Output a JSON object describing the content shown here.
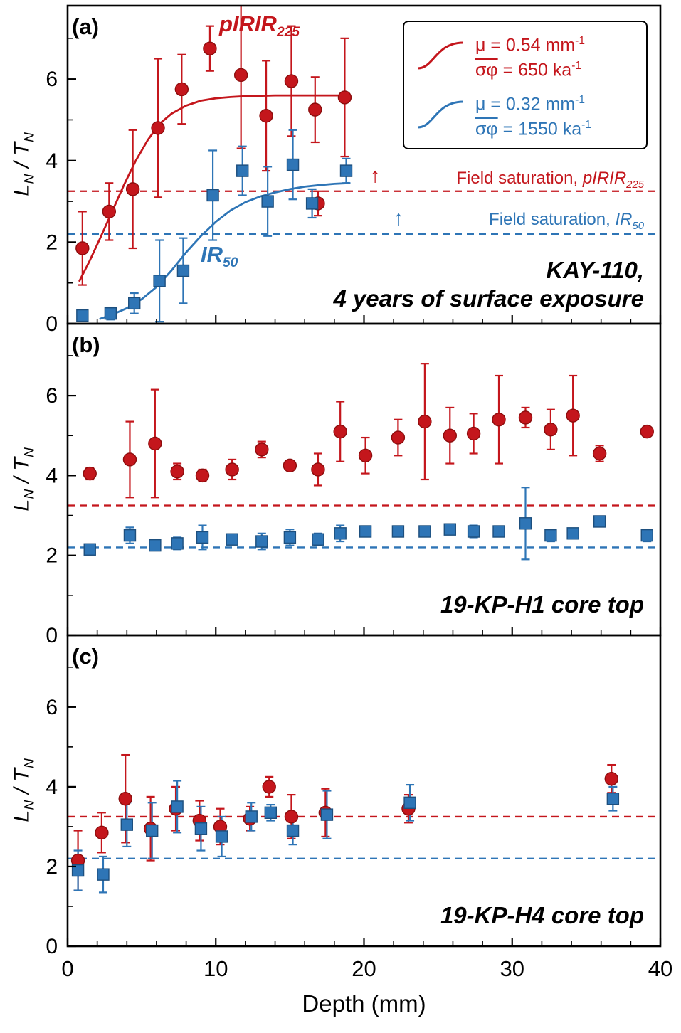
{
  "colors": {
    "red": "#c4161c",
    "blue": "#2e75b6",
    "red_edge": "#8c0d0d",
    "blue_edge": "#1d4f7e"
  },
  "figure": {
    "x_minor_step": 2,
    "y_minor_step": 1
  },
  "ui": {
    "panel_tags": [
      "(a)",
      "(b)",
      "(c)"
    ],
    "series_labels": {
      "pirir": {
        "base": "pIRIR",
        "sub": "225"
      },
      "ir": {
        "base": "IR",
        "sub": "50"
      }
    },
    "saturation_red": {
      "prefix": "Field saturation, ",
      "name": "pIRIR",
      "sub": "225",
      "arrow": "↑"
    },
    "saturation_blue": {
      "prefix": "Field saturation, ",
      "name": "IR",
      "sub": "50",
      "arrow": "↑"
    },
    "captions": {
      "a1": "KAY-110,",
      "a2": "4 years of surface exposure",
      "b": "19-KP-H1 core top",
      "c": "19-KP-H4 core top"
    },
    "legend": {
      "rows": [
        {
          "mu": "μ = 0.54 mm",
          "mu_exp": "-1",
          "sig": "σφ",
          "sig_rest": " = 650 ka",
          "sig_exp": "-1"
        },
        {
          "mu": "μ = 0.32 mm",
          "mu_exp": "-1",
          "sig": "σφ",
          "sig_rest": " = 1550 ka",
          "sig_exp": "-1"
        }
      ]
    },
    "axis": {
      "x_label": "Depth (mm)",
      "y_l": "L",
      "y_l_sub": "N",
      "y_slash": " / ",
      "y_t": "T",
      "y_t_sub": "N"
    }
  },
  "chart_data": {
    "type": "scatter",
    "xlabel": "Depth (mm)",
    "ylabel": "LN / TN",
    "xlim": [
      0,
      40
    ],
    "ylim": [
      0,
      7.8
    ],
    "xticks": [
      0,
      10,
      20,
      30,
      40
    ],
    "yticks": [
      0,
      2,
      4,
      6
    ],
    "panels": [
      {
        "id": "a",
        "title": "KAY-110, 4 years of surface exposure",
        "hlines": [
          {
            "y": 3.25,
            "color": "red",
            "style": "dashed",
            "label": "Field saturation, pIRIR225"
          },
          {
            "y": 2.2,
            "color": "blue",
            "style": "dashed",
            "label": "Field saturation, IR50"
          }
        ],
        "curves": [
          {
            "name": "pIRIR225 fit",
            "color": "red",
            "mu": 0.54,
            "sigma_phi": 650,
            "points": [
              [
                0.8,
                1.05
              ],
              [
                1.5,
                1.55
              ],
              [
                2.2,
                2.1
              ],
              [
                3,
                2.75
              ],
              [
                3.8,
                3.4
              ],
              [
                4.6,
                4.0
              ],
              [
                5.4,
                4.5
              ],
              [
                6.2,
                4.9
              ],
              [
                7,
                5.15
              ],
              [
                8,
                5.35
              ],
              [
                9,
                5.47
              ],
              [
                10,
                5.53
              ],
              [
                11,
                5.56
              ],
              [
                12,
                5.58
              ],
              [
                14,
                5.6
              ],
              [
                16,
                5.6
              ],
              [
                18.7,
                5.6
              ]
            ]
          },
          {
            "name": "IR50 fit",
            "color": "blue",
            "mu": 0.32,
            "sigma_phi": 1550,
            "points": [
              [
                2.2,
                0.12
              ],
              [
                3,
                0.22
              ],
              [
                4,
                0.38
              ],
              [
                5,
                0.6
              ],
              [
                6,
                0.9
              ],
              [
                7,
                1.3
              ],
              [
                8,
                1.75
              ],
              [
                9,
                2.15
              ],
              [
                10,
                2.5
              ],
              [
                11,
                2.78
              ],
              [
                12,
                2.98
              ],
              [
                13,
                3.12
              ],
              [
                14,
                3.22
              ],
              [
                15,
                3.3
              ],
              [
                16,
                3.36
              ],
              [
                17,
                3.4
              ],
              [
                18,
                3.43
              ],
              [
                19,
                3.45
              ]
            ]
          }
        ],
        "series": [
          {
            "name": "pIRIR225",
            "marker": "circle",
            "color": "red",
            "edge": "red_edge",
            "points": [
              [
                1.0,
                1.85,
                0.9
              ],
              [
                2.8,
                2.75,
                0.7
              ],
              [
                4.4,
                3.3,
                1.45
              ],
              [
                6.1,
                4.8,
                1.7
              ],
              [
                7.7,
                5.75,
                0.85
              ],
              [
                9.6,
                6.75,
                0.55
              ],
              [
                11.7,
                6.1,
                1.8
              ],
              [
                13.4,
                5.1,
                1.35
              ],
              [
                15.1,
                5.95,
                1.35
              ],
              [
                16.7,
                5.25,
                0.8
              ],
              [
                16.9,
                2.95,
                0.3
              ],
              [
                18.7,
                5.55,
                1.45
              ]
            ]
          },
          {
            "name": "IR50",
            "marker": "square",
            "color": "blue",
            "edge": "blue_edge",
            "points": [
              [
                1.0,
                0.2,
                0.1
              ],
              [
                2.9,
                0.25,
                0.15
              ],
              [
                4.5,
                0.5,
                0.25
              ],
              [
                6.2,
                1.05,
                1.0
              ],
              [
                7.8,
                1.3,
                0.8
              ],
              [
                9.8,
                3.15,
                1.1
              ],
              [
                11.8,
                3.75,
                0.6
              ],
              [
                13.5,
                3.0,
                0.85
              ],
              [
                15.2,
                3.9,
                0.85
              ],
              [
                16.5,
                2.95,
                0.35
              ],
              [
                18.8,
                3.75,
                0.3
              ]
            ]
          }
        ]
      },
      {
        "id": "b",
        "title": "19-KP-H1 core top",
        "hlines": [
          {
            "y": 3.25,
            "color": "red",
            "style": "dashed",
            "label": "Field saturation, pIRIR225"
          },
          {
            "y": 2.2,
            "color": "blue",
            "style": "dashed",
            "label": "Field saturation, IR50"
          }
        ],
        "curves": [],
        "series": [
          {
            "name": "pIRIR225",
            "marker": "circle",
            "color": "red",
            "edge": "red_edge",
            "points": [
              [
                1.5,
                4.05,
                0.15
              ],
              [
                4.2,
                4.4,
                0.95
              ],
              [
                5.9,
                4.8,
                1.35
              ],
              [
                7.4,
                4.1,
                0.2
              ],
              [
                9.1,
                4.0,
                0.15
              ],
              [
                11.1,
                4.15,
                0.25
              ],
              [
                13.1,
                4.65,
                0.2
              ],
              [
                15.0,
                4.25,
                0.1
              ],
              [
                16.9,
                4.15,
                0.4
              ],
              [
                18.4,
                5.1,
                0.75
              ],
              [
                20.1,
                4.5,
                0.45
              ],
              [
                22.3,
                4.95,
                0.45
              ],
              [
                24.1,
                5.35,
                1.45
              ],
              [
                25.8,
                5.0,
                0.7
              ],
              [
                27.4,
                5.05,
                0.5
              ],
              [
                29.1,
                5.4,
                1.1
              ],
              [
                30.9,
                5.45,
                0.25
              ],
              [
                32.6,
                5.15,
                0.5
              ],
              [
                34.1,
                5.5,
                1.0
              ],
              [
                35.9,
                4.55,
                0.2
              ],
              [
                39.1,
                5.1,
                0.1
              ]
            ]
          },
          {
            "name": "IR50",
            "marker": "square",
            "color": "blue",
            "edge": "blue_edge",
            "points": [
              [
                1.5,
                2.15,
                0.05
              ],
              [
                4.2,
                2.5,
                0.2
              ],
              [
                5.9,
                2.25,
                0.1
              ],
              [
                7.4,
                2.3,
                0.15
              ],
              [
                9.1,
                2.45,
                0.3
              ],
              [
                11.1,
                2.4,
                0.1
              ],
              [
                13.1,
                2.35,
                0.2
              ],
              [
                15.0,
                2.45,
                0.2
              ],
              [
                16.9,
                2.4,
                0.15
              ],
              [
                18.4,
                2.55,
                0.2
              ],
              [
                20.1,
                2.6,
                0.1
              ],
              [
                22.3,
                2.6,
                0.1
              ],
              [
                24.1,
                2.6,
                0.1
              ],
              [
                25.8,
                2.65,
                0.1
              ],
              [
                27.4,
                2.6,
                0.15
              ],
              [
                29.1,
                2.6,
                0.1
              ],
              [
                30.9,
                2.8,
                0.9
              ],
              [
                32.6,
                2.5,
                0.15
              ],
              [
                34.1,
                2.55,
                0.1
              ],
              [
                35.9,
                2.85,
                0.05
              ],
              [
                39.1,
                2.5,
                0.15
              ]
            ]
          }
        ]
      },
      {
        "id": "c",
        "title": "19-KP-H4 core top",
        "hlines": [
          {
            "y": 3.25,
            "color": "red",
            "style": "dashed",
            "label": "Field saturation, pIRIR225"
          },
          {
            "y": 2.2,
            "color": "blue",
            "style": "dashed",
            "label": "Field saturation, IR50"
          }
        ],
        "curves": [],
        "series": [
          {
            "name": "pIRIR225",
            "marker": "circle",
            "color": "red",
            "edge": "red_edge",
            "points": [
              [
                0.7,
                2.15,
                0.75
              ],
              [
                2.3,
                2.85,
                0.5
              ],
              [
                3.9,
                3.7,
                1.1
              ],
              [
                5.6,
                2.95,
                0.8
              ],
              [
                7.3,
                3.45,
                0.55
              ],
              [
                8.9,
                3.15,
                0.5
              ],
              [
                10.3,
                3.0,
                0.45
              ],
              [
                12.3,
                3.2,
                0.3
              ],
              [
                13.6,
                4.0,
                0.25
              ],
              [
                15.1,
                3.25,
                0.55
              ],
              [
                17.4,
                3.35,
                0.6
              ],
              [
                23.0,
                3.45,
                0.35
              ],
              [
                36.7,
                4.2,
                0.35
              ]
            ]
          },
          {
            "name": "IR50",
            "marker": "square",
            "color": "blue",
            "edge": "blue_edge",
            "points": [
              [
                0.7,
                1.9,
                0.5
              ],
              [
                2.4,
                1.8,
                0.45
              ],
              [
                4.0,
                3.05,
                0.55
              ],
              [
                5.7,
                2.9,
                0.7
              ],
              [
                7.4,
                3.5,
                0.65
              ],
              [
                9.0,
                2.95,
                0.55
              ],
              [
                10.4,
                2.75,
                0.5
              ],
              [
                12.4,
                3.25,
                0.35
              ],
              [
                13.7,
                3.35,
                0.2
              ],
              [
                15.2,
                2.9,
                0.35
              ],
              [
                17.5,
                3.3,
                0.6
              ],
              [
                23.1,
                3.6,
                0.45
              ],
              [
                36.8,
                3.7,
                0.3
              ]
            ]
          }
        ]
      }
    ]
  }
}
